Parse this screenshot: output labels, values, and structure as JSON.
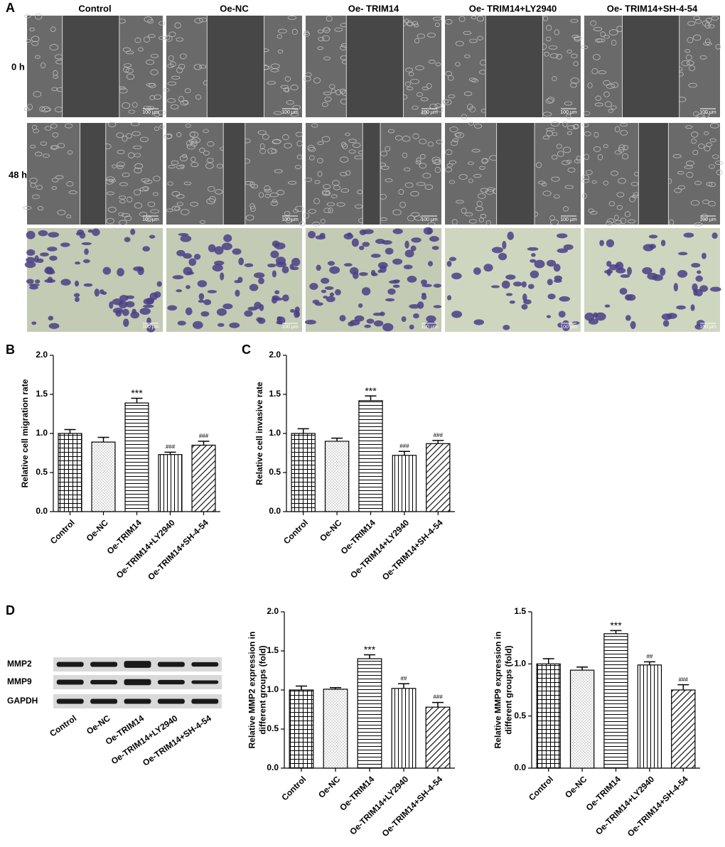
{
  "figure": {
    "panel_labels": [
      "A",
      "B",
      "C",
      "D"
    ],
    "columns": [
      "Control",
      "Oe-NC",
      "Oe- TRIM14",
      "Oe- TRIM14+LY2940",
      "Oe- TRIM14+SH-4-54"
    ],
    "rows": [
      "0 h",
      "48 h"
    ],
    "scale_bar": "100 μm",
    "blot_bands": [
      "MMP2",
      "MMP9",
      "GAPDH"
    ],
    "blot_categories": [
      "Control",
      "Oe-NC",
      "Oe-TRIM14",
      "Oe-TRIM14+LY2940",
      "Oe-TRIM14+SH-4-54"
    ]
  },
  "chart_data": [
    {
      "type": "bar",
      "ylabel": [
        "Relative cell migration rate"
      ],
      "categories": [
        "Control",
        "Oe-NC",
        "Oe-TRIM14",
        "Oe-TRIM14+LY2940",
        "Oe-TRIM14+SH-4-54"
      ],
      "values": [
        1.0,
        0.89,
        1.39,
        0.73,
        0.85
      ],
      "errors": [
        0.05,
        0.06,
        0.06,
        0.03,
        0.05
      ],
      "annotations": [
        null,
        null,
        "***",
        "###",
        "###"
      ],
      "patterns": [
        "grid",
        "dots",
        "hlines",
        "vlines",
        "diag"
      ],
      "color": "#000000",
      "ylim": [
        0,
        2
      ],
      "yticks": [
        {
          "value": 0,
          "label": "0.0"
        },
        0.5,
        {
          "value": 1,
          "label": "1.0"
        },
        1.5,
        {
          "value": 2,
          "label": "2.0"
        }
      ]
    },
    {
      "type": "bar",
      "ylabel": [
        "Relative cell invasive rate"
      ],
      "categories": [
        "Control",
        "Oe-NC",
        "Oe-TRIM14",
        "Oe-TRIM14+LY2940",
        "Oe-TRIM14+SH-4-54"
      ],
      "values": [
        1.0,
        0.9,
        1.42,
        0.72,
        0.87
      ],
      "errors": [
        0.06,
        0.04,
        0.06,
        0.05,
        0.04
      ],
      "annotations": [
        null,
        null,
        "***",
        "###",
        "###"
      ],
      "patterns": [
        "grid",
        "dots",
        "hlines",
        "vlines",
        "diag"
      ],
      "color": "#000000",
      "ylim": [
        0,
        2
      ],
      "yticks": [
        {
          "value": 0,
          "label": "0.0"
        },
        0.5,
        {
          "value": 1,
          "label": "1.0"
        },
        1.5,
        {
          "value": 2,
          "label": "2.0"
        }
      ]
    },
    {
      "type": "bar",
      "ylabel": [
        "Relative MMP2 expression in",
        "different groups (fold)"
      ],
      "categories": [
        "Control",
        "Oe-NC",
        "Oe-TRIM14",
        "Oe-TRIM14+LY2940",
        "Oe-TRIM14+SH-4-54"
      ],
      "values": [
        1.0,
        1.01,
        1.4,
        1.02,
        0.78
      ],
      "errors": [
        0.05,
        0.02,
        0.05,
        0.06,
        0.06
      ],
      "annotations": [
        null,
        null,
        "***",
        "##",
        "###"
      ],
      "patterns": [
        "grid",
        "dots",
        "hlines",
        "vlines",
        "diag"
      ],
      "color": "#000000",
      "ylim": [
        0,
        2
      ],
      "yticks": [
        {
          "value": 0,
          "label": "0.0"
        },
        0.5,
        {
          "value": 1,
          "label": "1.0"
        },
        1.5,
        {
          "value": 2,
          "label": "2.0"
        }
      ]
    },
    {
      "type": "bar",
      "ylabel": [
        "Relative MMP9 expression in",
        "different groups (fold)"
      ],
      "categories": [
        "Control",
        "Oe-NC",
        "Oe-TRIM14",
        "Oe-TRIM14+LY2940",
        "Oe-TRIM14+SH-4-54"
      ],
      "values": [
        1.0,
        0.94,
        1.29,
        0.99,
        0.75
      ],
      "errors": [
        0.05,
        0.03,
        0.03,
        0.03,
        0.05
      ],
      "annotations": [
        null,
        null,
        "***",
        "##",
        "###"
      ],
      "patterns": [
        "grid",
        "dots",
        "hlines",
        "vlines",
        "diag"
      ],
      "color": "#000000",
      "ylim": [
        0,
        1.5
      ],
      "yticks": [
        {
          "value": 0,
          "label": "0.0"
        },
        0.5,
        {
          "value": 1,
          "label": "1.0"
        },
        1.5
      ]
    }
  ]
}
